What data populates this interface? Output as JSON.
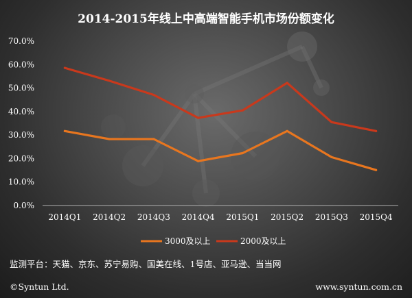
{
  "chart_data": {
    "type": "line",
    "title": "2014-2015年线上中高端智能手机市场份额变化",
    "categories": [
      "2014Q1",
      "2014Q2",
      "2014Q3",
      "2014Q4",
      "2015Q1",
      "2015Q2",
      "2015Q3",
      "2015Q4"
    ],
    "ylim": [
      0,
      70
    ],
    "yticks": [
      0,
      10,
      20,
      30,
      40,
      50,
      60,
      70
    ],
    "ytick_labels": [
      "0.0%",
      "10.0%",
      "20.0%",
      "30.0%",
      "40.0%",
      "50.0%",
      "60.0%",
      "70.0%"
    ],
    "grid": false,
    "legend_position": "bottom",
    "series": [
      {
        "name": "3000及以上",
        "color": "#e8761f",
        "values": [
          31.7,
          28.3,
          28.3,
          18.9,
          22.3,
          31.7,
          20.6,
          15.1
        ]
      },
      {
        "name": "2000及以上",
        "color": "#c9391c",
        "values": [
          58.6,
          53.1,
          47.1,
          37.3,
          40.5,
          52.2,
          35.5,
          31.7
        ]
      }
    ]
  },
  "footer": {
    "platforms": "监测平台：天猫、京东、苏宁易购、国美在线、1号店、亚马逊、当当网",
    "copyright": "©Syntun Ltd.",
    "website": "www.syntun.com.cn"
  },
  "colors": {
    "axis": "#b0b0b0",
    "text": "#ffffff"
  }
}
